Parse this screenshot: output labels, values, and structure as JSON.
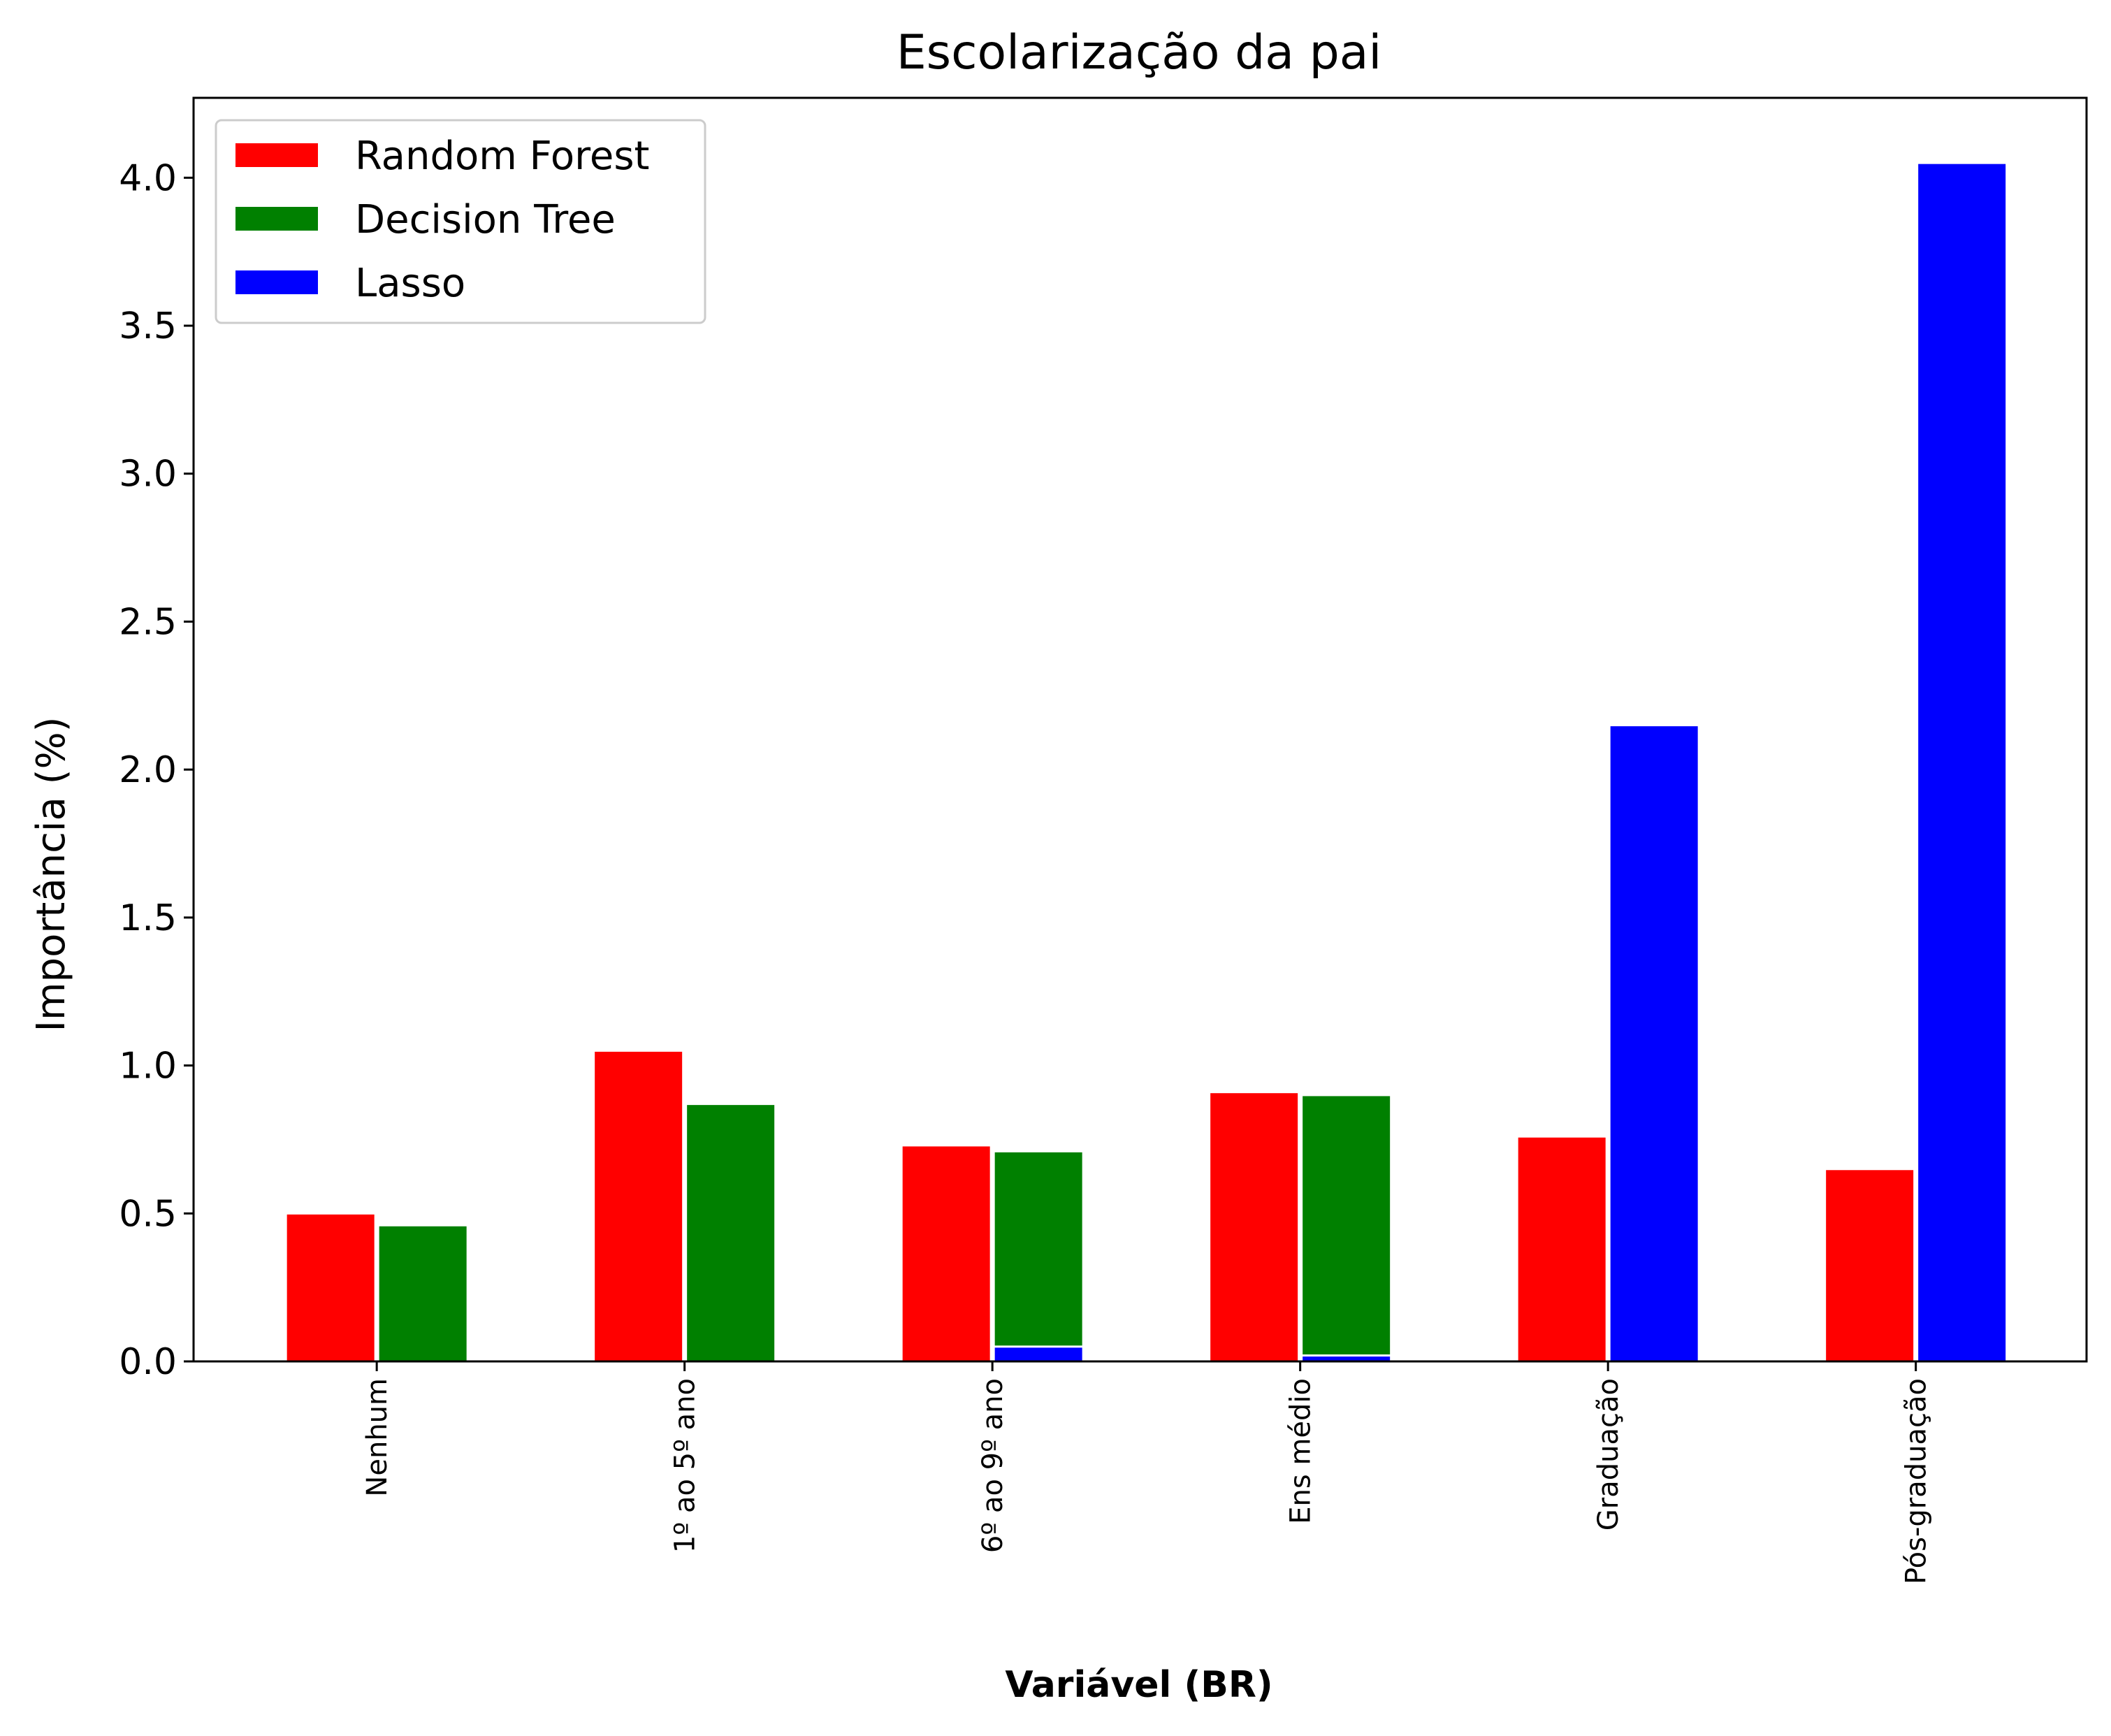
{
  "chart_data": {
    "type": "bar",
    "title": "Escolarização da pai",
    "xlabel": "Variável (BR)",
    "ylabel": "Importância (%)",
    "categories": [
      "Nenhum",
      "1º ao 5º ano",
      "6º ao 9º ano",
      "Ens médio",
      "Graduação",
      "Pós-graduação"
    ],
    "series": [
      {
        "name": "Random Forest",
        "color": "#ff0000",
        "values": [
          0.5,
          1.05,
          0.73,
          0.91,
          0.76,
          0.65
        ]
      },
      {
        "name": "Decision Tree",
        "color": "#008000",
        "values": [
          0.46,
          0.87,
          0.71,
          0.9,
          0.0,
          0.0
        ]
      },
      {
        "name": "Lasso",
        "color": "#0000ff",
        "values": [
          0.0,
          0.0,
          0.05,
          0.02,
          2.15,
          4.05
        ]
      }
    ],
    "ylim": [
      0,
      4.27
    ],
    "yticks": [
      "0.0",
      "0.5",
      "1.0",
      "1.5",
      "2.0",
      "2.5",
      "3.0",
      "3.5",
      "4.0"
    ],
    "legend_position": "top-left",
    "grid": false
  }
}
